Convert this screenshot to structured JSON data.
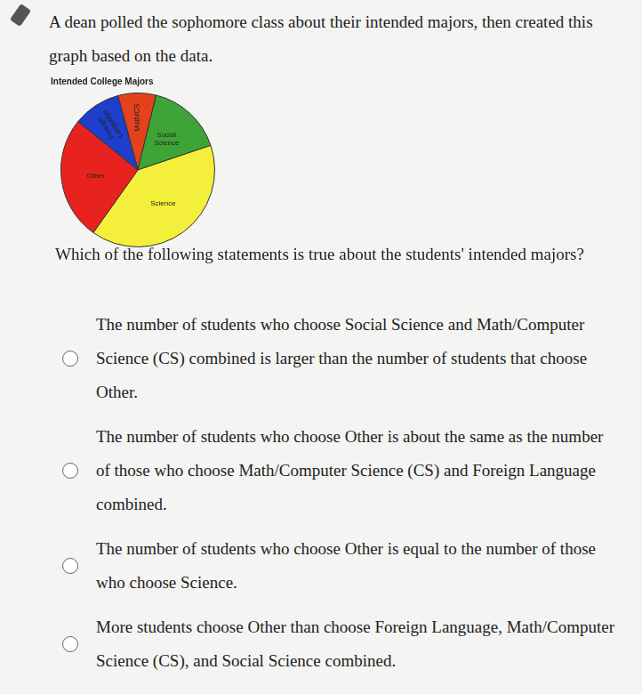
{
  "intro": "A dean polled the sophomore class about their intended majors, then created this graph based on the data.",
  "chart_data": {
    "type": "pie",
    "title": "Intended College Majors",
    "categories": [
      "Math/CS",
      "Social Science",
      "Science",
      "Other",
      "Foreign Language"
    ],
    "values": [
      8,
      16,
      40,
      26,
      10
    ],
    "colors": [
      "#e4421c",
      "#3ea437",
      "#f4ef3a",
      "#e8231f",
      "#1d3fcc"
    ]
  },
  "question": {
    "prompt": "Which of the following statements is true about the students' intended majors?",
    "options": [
      "The number of students who choose Social Science and Math/Computer Science (CS) combined is larger than the number of students that choose Other.",
      "The number of students who choose Other is about the same as the number of those who choose Math/Computer Science (CS) and Foreign Language combined.",
      "The number of students who choose Other is equal to the number of those who choose Science.",
      "More students choose Other than choose Foreign Language, Math/Computer Science (CS), and Social Science combined."
    ]
  }
}
